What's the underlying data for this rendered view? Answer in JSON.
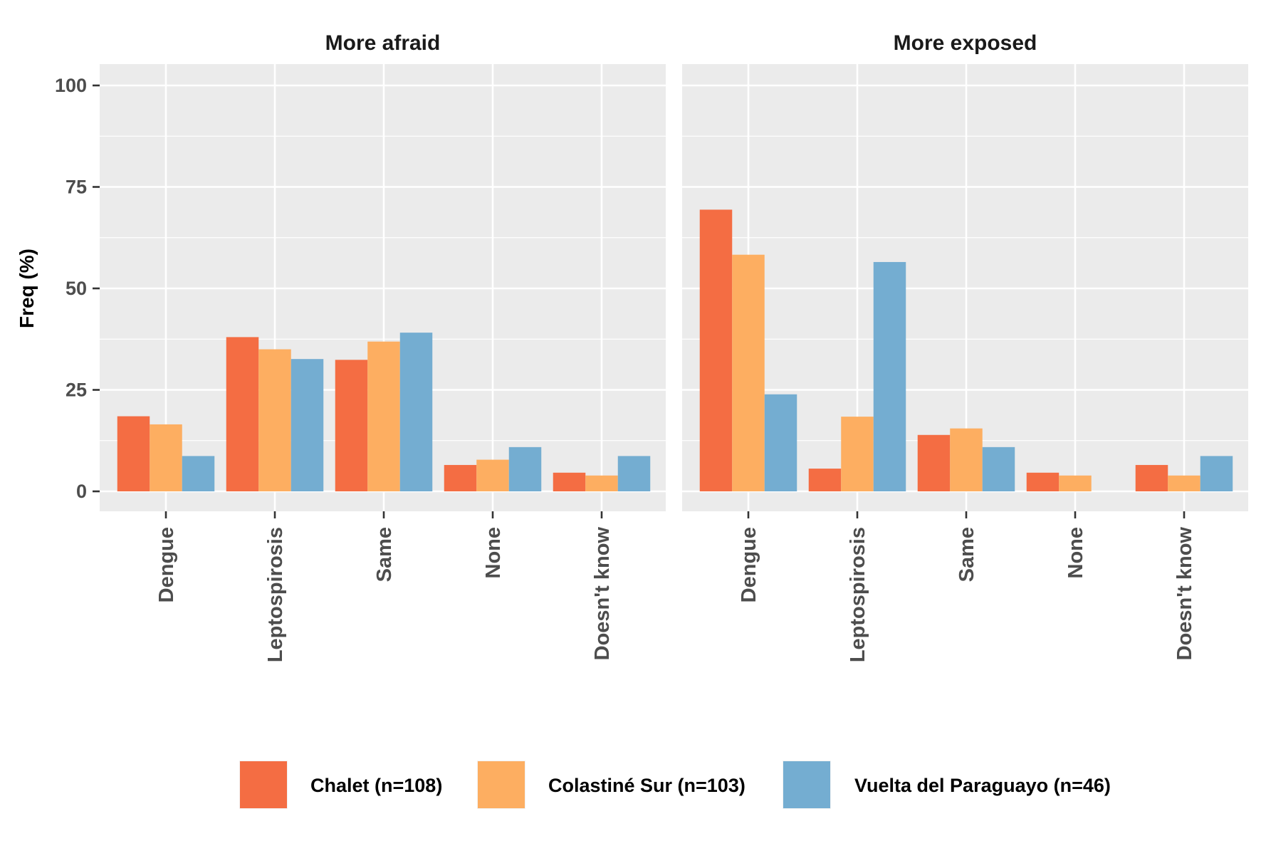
{
  "chart_data": {
    "type": "bar",
    "ylabel": "Freq (%)",
    "xlabel": "",
    "ylim": [
      0,
      100
    ],
    "yticks": [
      0,
      25,
      50,
      75,
      100
    ],
    "grid": true,
    "legend_position": "bottom",
    "categories": [
      "Dengue",
      "Leptospirosis",
      "Same",
      "None",
      "Doesn't know"
    ],
    "series_styles": [
      {
        "name": "Chalet (n=108)",
        "color": "#F46D43"
      },
      {
        "name": "Colastiné Sur (n=103)",
        "color": "#FDAE61"
      },
      {
        "name": "Vuelta del Paraguayo (n=46)",
        "color": "#74ADD1"
      }
    ],
    "panels": [
      {
        "title": "More afraid",
        "series": [
          {
            "name": "Chalet (n=108)",
            "values": [
              18.5,
              38.0,
              32.4,
              6.5,
              4.6
            ]
          },
          {
            "name": "Colastiné Sur (n=103)",
            "values": [
              16.5,
              35.0,
              36.9,
              7.8,
              3.9
            ]
          },
          {
            "name": "Vuelta del Paraguayo (n=46)",
            "values": [
              8.7,
              32.6,
              39.1,
              10.9,
              8.7
            ]
          }
        ]
      },
      {
        "title": "More exposed",
        "series": [
          {
            "name": "Chalet (n=108)",
            "values": [
              69.4,
              5.6,
              13.9,
              4.6,
              6.5
            ]
          },
          {
            "name": "Colastiné Sur (n=103)",
            "values": [
              58.3,
              18.4,
              15.5,
              3.9,
              3.9
            ]
          },
          {
            "name": "Vuelta del Paraguayo (n=46)",
            "values": [
              23.9,
              56.5,
              10.9,
              0,
              8.7
            ]
          }
        ]
      }
    ]
  }
}
